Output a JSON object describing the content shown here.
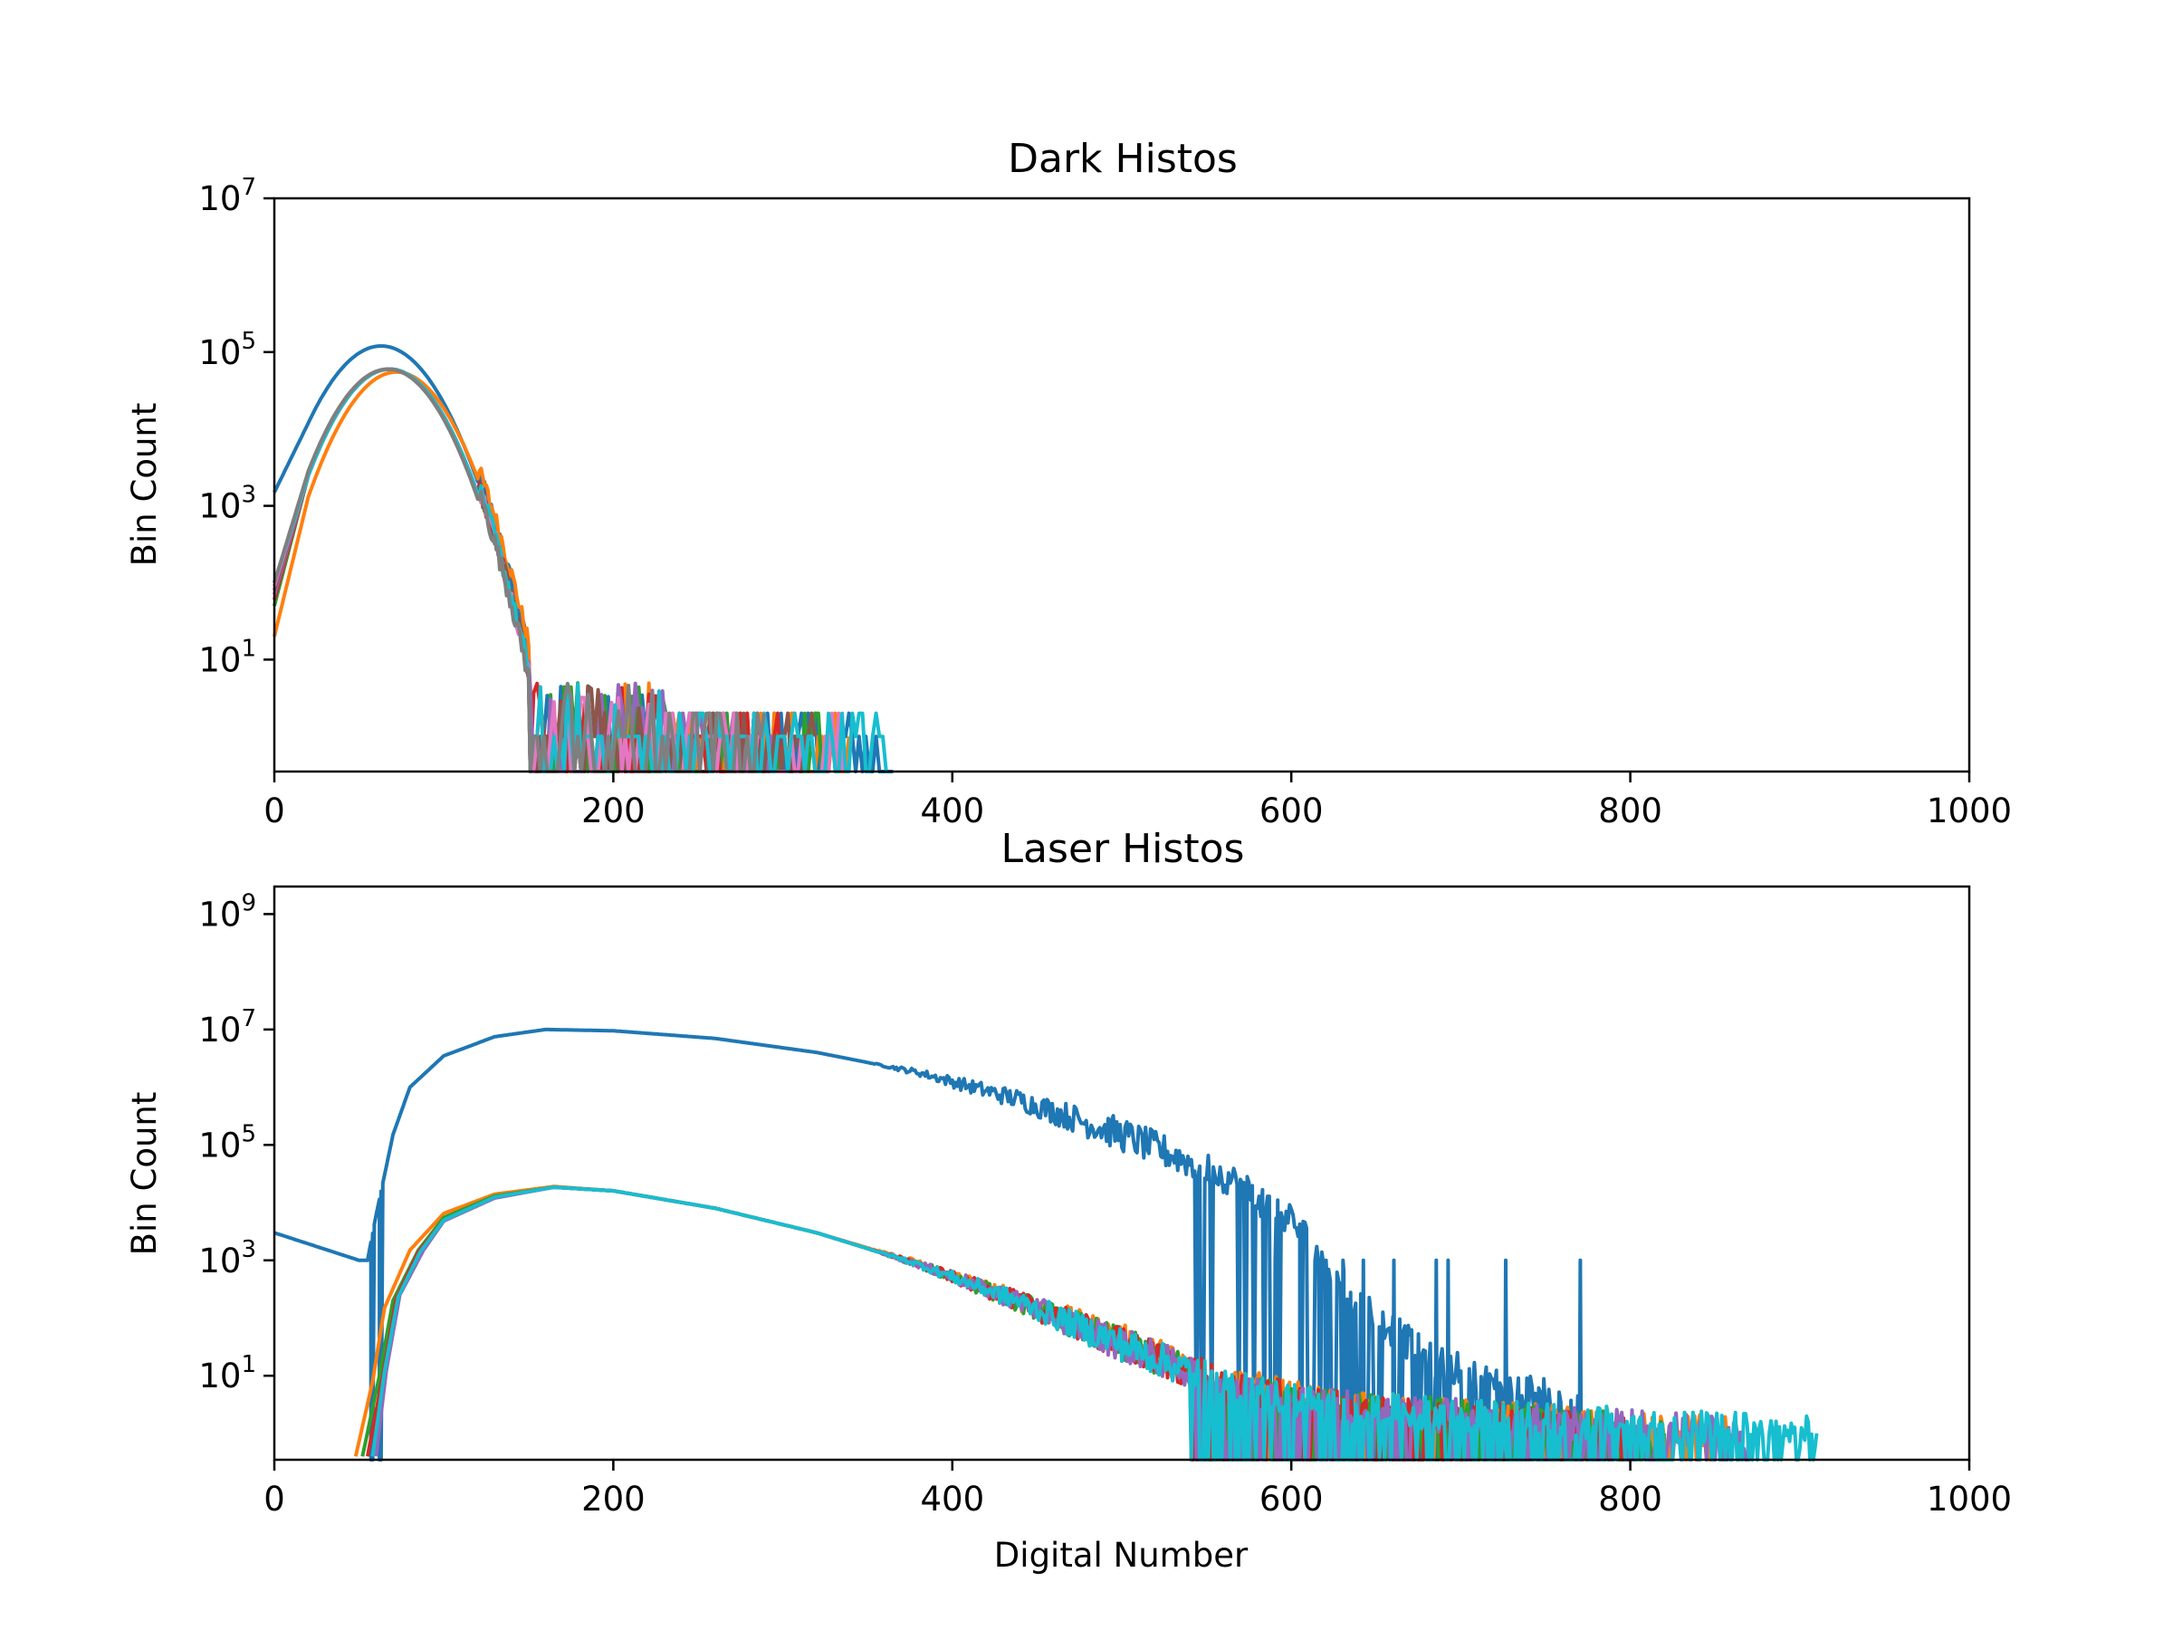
{
  "chart_data": [
    {
      "type": "line",
      "title": "Dark Histos",
      "xlabel": "",
      "ylabel": "Bin Count",
      "xlim": [
        0,
        1000
      ],
      "ylim": [
        0.35,
        10000000
      ],
      "yscale": "log",
      "xticks": [
        "0",
        "200",
        "400",
        "600",
        "800",
        "1000"
      ],
      "yticks": [
        {
          "base": "10",
          "exp": "1"
        },
        {
          "base": "10",
          "exp": "3"
        },
        {
          "base": "10",
          "exp": "5"
        },
        {
          "base": "10",
          "exp": "7"
        }
      ],
      "grid": false,
      "legend": "none",
      "series": [
        {
          "color": "#1f77b4",
          "peak_x": 63,
          "peak_y": 120000,
          "sigma": 20,
          "start_y": 1500,
          "tail_end": 365
        },
        {
          "color": "#ff7f0e",
          "peak_x": 72,
          "peak_y": 55000,
          "sigma": 19,
          "start_y": 20,
          "tail_end": 340
        },
        {
          "color": "#2ca02c",
          "peak_x": 68,
          "peak_y": 60000,
          "sigma": 19,
          "start_y": 50,
          "tail_end": 330
        },
        {
          "color": "#d62728",
          "peak_x": 68,
          "peak_y": 60000,
          "sigma": 19,
          "start_y": 60,
          "tail_end": 310
        },
        {
          "color": "#9467bd",
          "peak_x": 68,
          "peak_y": 60000,
          "sigma": 19,
          "start_y": 70,
          "tail_end": 300
        },
        {
          "color": "#8c564b",
          "peak_x": 68,
          "peak_y": 60000,
          "sigma": 19,
          "start_y": 80,
          "tail_end": 320
        },
        {
          "color": "#e377c2",
          "peak_x": 68,
          "peak_y": 60000,
          "sigma": 19,
          "start_y": 90,
          "tail_end": 335
        },
        {
          "color": "#17becf",
          "peak_x": 68,
          "peak_y": 60000,
          "sigma": 19,
          "start_y": 100,
          "tail_end": 362
        },
        {
          "color": "#7f7f7f",
          "peak_x": 67,
          "peak_y": 60000,
          "sigma": 19,
          "start_y": 100,
          "tail_end": 290
        }
      ]
    },
    {
      "type": "line",
      "title": "Laser Histos",
      "xlabel": "Digital Number",
      "ylabel": "Bin Count",
      "xlim": [
        0,
        1000
      ],
      "ylim": [
        0.35,
        3000000000
      ],
      "yscale": "log",
      "xticks": [
        "0",
        "200",
        "400",
        "600",
        "800",
        "1000"
      ],
      "yticks": [
        {
          "base": "10",
          "exp": "1"
        },
        {
          "base": "10",
          "exp": "3"
        },
        {
          "base": "10",
          "exp": "5"
        },
        {
          "base": "10",
          "exp": "7"
        },
        {
          "base": "10",
          "exp": "9"
        }
      ],
      "grid": false,
      "legend": "none",
      "series": [
        {
          "color": "#1f77b4",
          "points": [
            [
              0,
              3000
            ],
            [
              50,
              1000
            ],
            [
              55,
              1000
            ],
            [
              60,
              6000
            ],
            [
              70,
              150000
            ],
            [
              80,
              1000000
            ],
            [
              100,
              3500000
            ],
            [
              130,
              7500000
            ],
            [
              160,
              10000000
            ],
            [
              200,
              9500000
            ],
            [
              260,
              7000000
            ],
            [
              320,
              4000000
            ],
            [
              380,
              1800000
            ],
            [
              440,
              600000
            ],
            [
              500,
              150000
            ],
            [
              560,
              30000
            ],
            [
              600,
              5000
            ],
            [
              620,
              1000
            ],
            [
              640,
              200
            ],
            [
              680,
              20
            ],
            [
              720,
              8
            ],
            [
              770,
              3
            ]
          ],
          "spikes": [
            [
              57,
              1000
            ],
            [
              62,
              1000
            ],
            [
              590,
              1000
            ],
            [
              605,
              1000
            ],
            [
              620,
              1000
            ],
            [
              630,
              1000
            ],
            [
              642,
              1000
            ],
            [
              660,
              1000
            ],
            [
              685,
              1000
            ],
            [
              692,
              1000
            ],
            [
              726,
              1000
            ],
            [
              770,
              1000
            ]
          ]
        },
        {
          "color": "#ff7f0e",
          "points": [
            [
              48,
              0.4
            ],
            [
              58,
              8
            ],
            [
              65,
              150
            ],
            [
              80,
              1500
            ],
            [
              100,
              6500
            ],
            [
              130,
              14000
            ],
            [
              165,
              19000
            ],
            [
              200,
              16000
            ],
            [
              260,
              8000
            ],
            [
              320,
              3000
            ],
            [
              380,
              900
            ],
            [
              440,
              200
            ],
            [
              500,
              40
            ],
            [
              560,
              8
            ],
            [
              620,
              3
            ],
            [
              700,
              2
            ],
            [
              860,
              1
            ]
          ]
        },
        {
          "color": "#2ca02c",
          "points": [
            [
              52,
              0.4
            ],
            [
              62,
              10
            ],
            [
              70,
              200
            ],
            [
              85,
              1500
            ],
            [
              100,
              5500
            ],
            [
              130,
              13000
            ],
            [
              165,
              18500
            ],
            [
              200,
              16000
            ],
            [
              260,
              8000
            ],
            [
              320,
              3000
            ],
            [
              380,
              850
            ],
            [
              440,
              190
            ],
            [
              500,
              35
            ],
            [
              560,
              7
            ],
            [
              620,
              3
            ],
            [
              700,
              2
            ],
            [
              820,
              1
            ]
          ]
        },
        {
          "color": "#d62728",
          "points": [
            [
              55,
              0.4
            ],
            [
              64,
              10
            ],
            [
              72,
              220
            ],
            [
              85,
              1400
            ],
            [
              100,
              5000
            ],
            [
              130,
              12500
            ],
            [
              165,
              18500
            ],
            [
              200,
              16000
            ],
            [
              260,
              8000
            ],
            [
              320,
              3000
            ],
            [
              380,
              850
            ],
            [
              440,
              190
            ],
            [
              500,
              35
            ],
            [
              560,
              7
            ],
            [
              620,
              3
            ],
            [
              700,
              2
            ],
            [
              800,
              1
            ]
          ]
        },
        {
          "color": "#9467bd",
          "points": [
            [
              60,
              0.4
            ],
            [
              66,
              12
            ],
            [
              74,
              250
            ],
            [
              88,
              1500
            ],
            [
              100,
              4800
            ],
            [
              130,
              12000
            ],
            [
              165,
              18500
            ],
            [
              200,
              16000
            ],
            [
              260,
              8000
            ],
            [
              320,
              3000
            ],
            [
              380,
              850
            ],
            [
              440,
              190
            ],
            [
              500,
              35
            ],
            [
              560,
              7
            ],
            [
              620,
              3
            ],
            [
              700,
              2
            ],
            [
              870,
              1
            ]
          ]
        },
        {
          "color": "#17becf",
          "points": [
            [
              58,
              0.4
            ],
            [
              65,
              12
            ],
            [
              73,
              230
            ],
            [
              86,
              1400
            ],
            [
              100,
              5000
            ],
            [
              130,
              12500
            ],
            [
              165,
              18500
            ],
            [
              200,
              16000
            ],
            [
              260,
              8000
            ],
            [
              320,
              3000
            ],
            [
              380,
              850
            ],
            [
              440,
              190
            ],
            [
              500,
              35
            ],
            [
              560,
              7
            ],
            [
              620,
              3
            ],
            [
              700,
              2
            ],
            [
              910,
              1
            ]
          ]
        }
      ]
    }
  ]
}
